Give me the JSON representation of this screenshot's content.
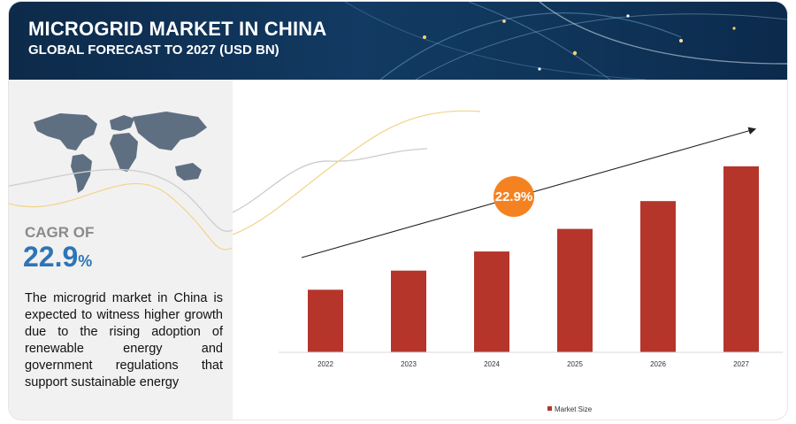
{
  "header": {
    "title": "MICROGRID MARKET IN CHINA",
    "subtitle": "GLOBAL FORECAST TO 2027 (USD BN)"
  },
  "summary": {
    "cagr_label": "CAGR OF",
    "cagr_value": "22.9",
    "cagr_unit": "%",
    "description": "The microgrid market in China is expected to witness higher growth due to the rising adoption of renewable energy and government regulations that support sustainable energy"
  },
  "chart_data": {
    "type": "bar",
    "categories": [
      "2022",
      "2023",
      "2024",
      "2025",
      "2026",
      "2027"
    ],
    "series": [
      {
        "name": "Market Size",
        "values": [
          0.36,
          0.47,
          0.58,
          0.71,
          0.87,
          1.07
        ]
      }
    ],
    "ylim": [
      0,
      1.1
    ],
    "grid": false,
    "legend": "bottom-center",
    "bar_color": "#b5352b",
    "annotation": {
      "text": "22.9%",
      "color": "#f58220"
    }
  },
  "colors": {
    "header_bg": "#123a62",
    "accent_blue": "#2e75b6",
    "bar": "#b5352b",
    "badge": "#f58220"
  }
}
